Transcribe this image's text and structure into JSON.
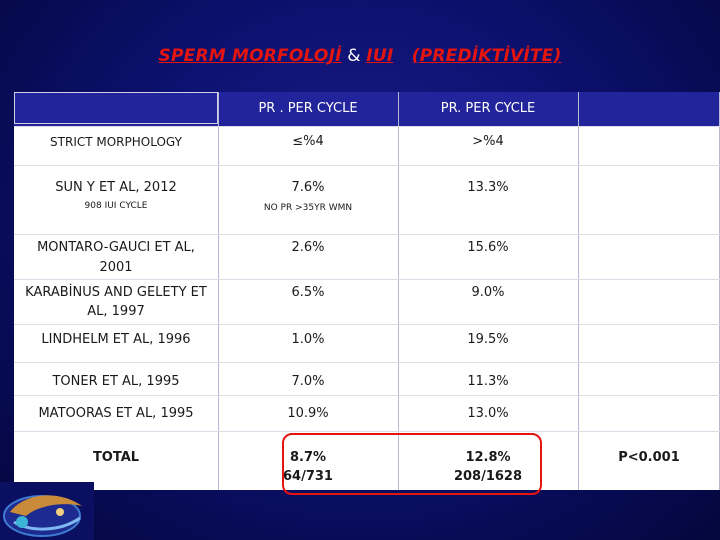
{
  "slide": {
    "title_part1": "SPERM MORFOLOJİ",
    "title_amp": " & ",
    "title_part2": "IUI",
    "title_gap": "   ",
    "title_part3": "(PREDİKTİVİTE)"
  },
  "table": {
    "headers": [
      "",
      "PR . PER CYCLE",
      "PR.  PER CYCLE",
      ""
    ],
    "rows": [
      {
        "label": "STRICT MORPHOLOGY",
        "col1": "≤%4",
        "col2": ">%4",
        "col3": ""
      },
      {
        "label": "SUN Y ET AL, 2012",
        "label_sub": "908 IUI CYCLE",
        "col1": "7.6%",
        "col1_sub": "NO PR >35YR WMN",
        "col2": "13.3%",
        "col3": ""
      },
      {
        "label_line1": "MONTARO-GAUCI ET AL,",
        "label_line2": "2001",
        "col1": "2.6%",
        "col2": "15.6%",
        "col3": ""
      },
      {
        "label_line1": "KARABİNUS AND GELETY ET",
        "label_line2": "AL, 1997",
        "col1": "6.5%",
        "col2": "9.0%",
        "col3": ""
      },
      {
        "label": "LINDHELM ET AL, 1996",
        "col1": "1.0%",
        "col2": "19.5%",
        "col3": ""
      },
      {
        "label": "TONER ET AL, 1995",
        "col1": "7.0%",
        "col2": "11.3%",
        "col3": ""
      },
      {
        "label": "MATOORAS ET AL, 1995",
        "col1": "10.9%",
        "col2": "13.0%",
        "col3": ""
      },
      {
        "label": "TOTAL",
        "col1_line1": "8.7%",
        "col1_line2": "64/731",
        "col2_line1": "12.8%",
        "col2_line2": "208/1628",
        "col3": "P<0.001"
      }
    ]
  },
  "colors": {
    "background": "#0d1170",
    "header_band": "#22249b",
    "title_accent": "#e4150f",
    "highlight_border": "#e4150f"
  },
  "icons": {
    "logo": "medical-logo-icon"
  }
}
